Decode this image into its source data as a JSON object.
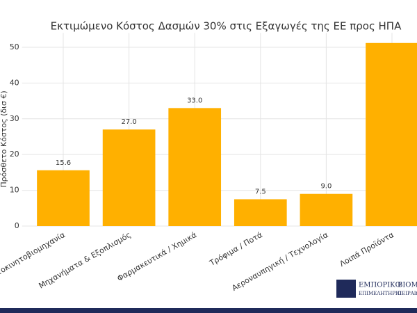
{
  "chart_data": {
    "type": "bar",
    "title": "Εκτιμώμενο Κόστος Δασμών 30% στις Εξαγωγές της ΕΕ προς ΗΠΑ",
    "y_label": "Πρόσθετο Κόστος (δισ €)",
    "categories": [
      "Αυτοκινητοβιομηχανία",
      "Μηχανήματα & Εξοπλισμός",
      "Φαρμακευτικά / Χημικά",
      "Τρόφιμα / Ποτά",
      "Αεροναυπηγική / Τεχνολογία",
      "Λοιπά Προϊόντα"
    ],
    "values": [
      15.6,
      27.0,
      33.0,
      7.5,
      9.0,
      51.2
    ],
    "value_labels": [
      "15.6",
      "27.0",
      "33.0",
      "7.5",
      "9.0",
      null
    ],
    "color": "#ffb000",
    "ylim": [
      0,
      54
    ],
    "yticks": [
      0,
      10,
      20,
      30,
      40,
      50
    ],
    "grid": true
  },
  "logo": {
    "line1": "ΕΜΠΟΡΙΚΟ",
    "line2": "ΕΠΙΜΕΛΗΤΗΡΙΟ",
    "line3": "ΒΙΟΜΗ",
    "line4": "ΠΕΙΡΑΙΩΣ"
  }
}
